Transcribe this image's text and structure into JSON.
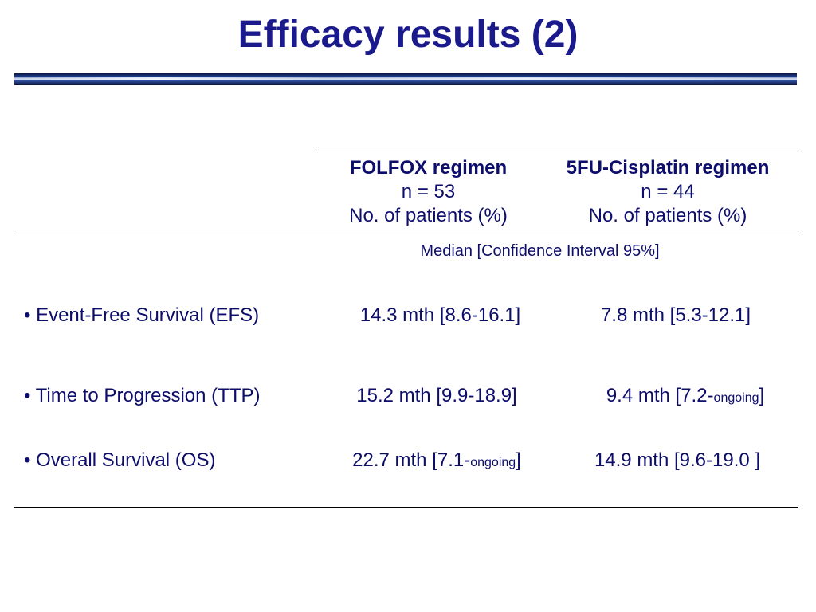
{
  "title": "Efficacy results (2)",
  "columns": [
    {
      "regimen": "FOLFOX regimen",
      "n": "n = 53",
      "unit": "No. of patients (%)"
    },
    {
      "regimen": "5FU-Cisplatin regimen",
      "n": "n = 44",
      "unit": "No. of patients (%)"
    }
  ],
  "median_caption": "Median [Confidence Interval 95%]",
  "rows": [
    {
      "label": "• Event-Free Survival (EFS)",
      "folfox": {
        "main": "14.3 mth [8.6-16.1]",
        "small": "",
        "tail": ""
      },
      "cisplatin": {
        "main": "7.8 mth [5.3-12.1]",
        "small": "",
        "tail": ""
      }
    },
    {
      "label": "• Time to Progression (TTP)",
      "folfox": {
        "main": "15.2 mth [9.9-18.9]",
        "small": "",
        "tail": ""
      },
      "cisplatin": {
        "main": "9.4 mth [7.2-",
        "small": "ongoing",
        "tail": "]"
      }
    },
    {
      "label": "• Overall Survival (OS)",
      "folfox": {
        "main": "22.7 mth [7.1-",
        "small": "ongoing",
        "tail": "]"
      },
      "cisplatin": {
        "main": "14.9 mth [9.6-19.0 ]",
        "small": "",
        "tail": ""
      }
    }
  ],
  "colors": {
    "title": "#1a1a8c",
    "text": "#0d0d6b"
  }
}
